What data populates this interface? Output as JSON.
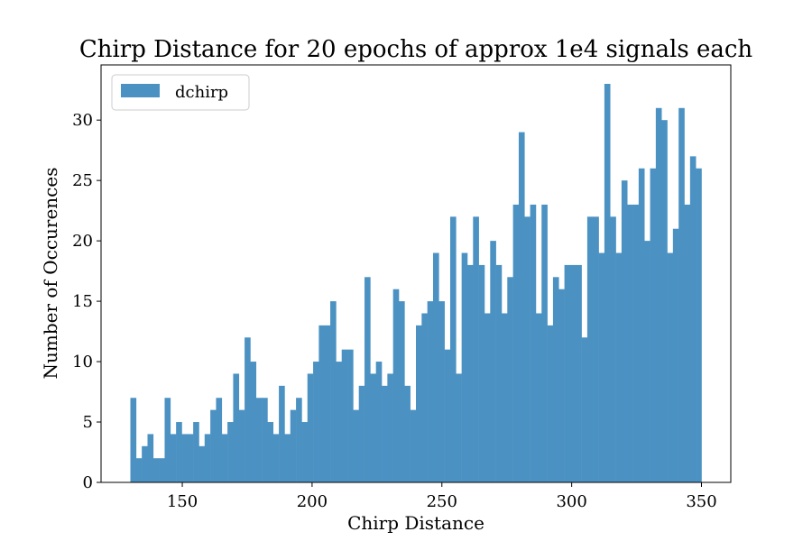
{
  "chart_data": {
    "type": "bar",
    "title": "Chirp Distance for 20 epochs of approx 1e4 signals each",
    "xlabel": "Chirp Distance",
    "ylabel": "Number of Occurences",
    "xlim": [
      130,
      350
    ],
    "ylim": [
      0,
      33
    ],
    "xticks": [
      150,
      200,
      250,
      300,
      350
    ],
    "yticks": [
      0,
      5,
      10,
      15,
      20,
      25,
      30
    ],
    "grid": false,
    "legend_position": "top-left",
    "series": [
      {
        "name": "dchirp",
        "color": "#4b92c3",
        "values": [
          7,
          2,
          3,
          4,
          2,
          2,
          7,
          4,
          5,
          4,
          4,
          5,
          3,
          4,
          6,
          7,
          4,
          5,
          9,
          6,
          12,
          10,
          7,
          7,
          5,
          4,
          8,
          4,
          6,
          7,
          5,
          9,
          10,
          13,
          13,
          15,
          10,
          11,
          11,
          6,
          8,
          17,
          9,
          10,
          8,
          9,
          16,
          15,
          8,
          6,
          13,
          14,
          15,
          19,
          15,
          11,
          22,
          9,
          19,
          18,
          22,
          18,
          14,
          20,
          18,
          14,
          17,
          23,
          29,
          22,
          23,
          14,
          23,
          13,
          17,
          16,
          18,
          18,
          18,
          12,
          22,
          22,
          19,
          33,
          22,
          19,
          25,
          23,
          23,
          26,
          20,
          26,
          31,
          30,
          19,
          21,
          31,
          23,
          27,
          26
        ]
      }
    ]
  }
}
